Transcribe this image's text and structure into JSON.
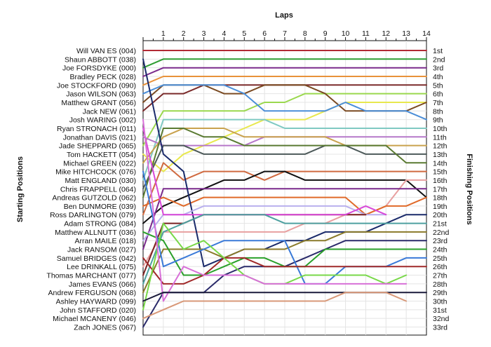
{
  "chart_data": {
    "type": "line",
    "title": "",
    "xlabel": "Laps",
    "ylabel_left": "Starting Positions",
    "ylabel_right": "Finishing Positions",
    "x_ticks": [
      "1",
      "2",
      "3",
      "4",
      "5",
      "6",
      "7",
      "8",
      "9",
      "10",
      "11",
      "12",
      "13",
      "14"
    ],
    "xlim": [
      0,
      14
    ],
    "y_positions": [
      1,
      33
    ],
    "grid": true,
    "legend": "none",
    "start_labels": [
      "Will VAN ES (004)",
      "Shaun ABBOTT (038)",
      "Joe FORSDYKE (000)",
      "Bradley PECK (028)",
      "Joe STOCKFORD (090)",
      "Jason WILSON (063)",
      "Matthew GRANT (056)",
      "Jack NEW (061)",
      "Josh WARING (002)",
      "Ryan STRONACH (011)",
      "Jonathan DAVIS (021)",
      "Jade SHEPPARD (065)",
      "Tom HACKETT (054)",
      "Michael GREEN (022)",
      "Mike HITCHCOCK (076)",
      "Matt ENGLAND (030)",
      "Chris FRAPPELL (064)",
      "Andreas GUTZOLD (062)",
      "Ben DUNMORE (039)",
      "Ross DARLINGTON (079)",
      "Adam STRONG (084)",
      "Matthew ALLNUTT (036)",
      "Arran MAILE (018)",
      "Jack RANSOM (027)",
      "Samuel BRIDGES (042)",
      "Lee DRINKALL (075)",
      "Thomas MARCHANT (077)",
      "James EVANS (066)",
      "Andrew FERGUSON (068)",
      "Ashley HAYWARD (099)",
      "John STAFFORD (020)",
      "Michael MCANENY (046)",
      "Zach JONES (067)"
    ],
    "finish_labels": [
      "1st",
      "2nd",
      "3rd",
      "4th",
      "5th",
      "6th",
      "7th",
      "8th",
      "9th",
      "10th",
      "11th",
      "12th",
      "13th",
      "14th",
      "15th",
      "16th",
      "17th",
      "18th",
      "19th",
      "20th",
      "21st",
      "22nd",
      "23rd",
      "24th",
      "25th",
      "26th",
      "27th",
      "28th",
      "29th",
      "30th",
      "31st",
      "32nd",
      "33rd"
    ],
    "series": [
      {
        "color": "#b22a34",
        "values": [
          1,
          1,
          1,
          1,
          1,
          1,
          1,
          1,
          1,
          1,
          1,
          1,
          1,
          1,
          1
        ]
      },
      {
        "color": "#2f9e33",
        "values": [
          3,
          2,
          2,
          2,
          2,
          2,
          2,
          2,
          2,
          2,
          2,
          2,
          2,
          2,
          2
        ]
      },
      {
        "color": "#7a2a8c",
        "values": [
          4,
          3,
          3,
          3,
          3,
          3,
          3,
          3,
          3,
          3,
          3,
          3,
          3,
          3,
          3
        ]
      },
      {
        "color": "#e8923a",
        "values": [
          5,
          4,
          4,
          4,
          4,
          4,
          4,
          4,
          4,
          4,
          4,
          4,
          4,
          4,
          4
        ]
      },
      {
        "color": "#7a2a2a",
        "values": [
          8,
          6,
          6,
          5,
          5,
          5,
          5,
          5,
          5,
          5,
          5,
          5,
          5,
          5,
          5
        ]
      },
      {
        "color": "#9ad84e",
        "values": [
          12,
          8,
          8,
          8,
          8,
          8,
          7,
          7,
          6,
          6,
          6,
          6,
          6,
          6,
          6
        ]
      },
      {
        "color": "#e8e84e",
        "values": [
          13,
          15,
          13,
          12,
          11,
          10,
          9,
          9,
          9,
          8,
          7,
          7,
          7,
          7,
          7
        ]
      },
      {
        "color": "#7a4a22",
        "values": [
          7,
          5,
          5,
          5,
          6,
          6,
          5,
          5,
          5,
          6,
          8,
          8,
          8,
          8,
          7
        ]
      },
      {
        "color": "#4b8ed8",
        "values": [
          6,
          5,
          5,
          5,
          5,
          6,
          8,
          8,
          8,
          8,
          7,
          8,
          8,
          8,
          9
        ]
      },
      {
        "color": "#7fc9c2",
        "values": [
          16,
          9,
          9,
          9,
          9,
          9,
          9,
          10,
          10,
          10,
          10,
          10,
          10,
          10,
          10
        ]
      },
      {
        "color": "#b678c9",
        "values": [
          11,
          12,
          12,
          12,
          12,
          12,
          11,
          11,
          11,
          11,
          11,
          11,
          11,
          11,
          11
        ]
      },
      {
        "color": "#c9a24e",
        "values": [
          14,
          11,
          10,
          10,
          10,
          11,
          11,
          11,
          11,
          11,
          12,
          12,
          12,
          12,
          12
        ]
      },
      {
        "color": "#4d5a5a",
        "values": [
          17,
          12,
          12,
          13,
          13,
          13,
          13,
          13,
          13,
          12,
          12,
          13,
          13,
          13,
          13
        ]
      },
      {
        "color": "#5a7a32",
        "values": [
          18,
          10,
          10,
          11,
          11,
          12,
          12,
          12,
          12,
          12,
          12,
          12,
          12,
          14,
          14
        ]
      },
      {
        "color": "#d06a40",
        "values": [
          20,
          14,
          16,
          15,
          15,
          15,
          16,
          15,
          15,
          15,
          15,
          15,
          15,
          15,
          15
        ]
      },
      {
        "color": "#101010",
        "values": [
          21,
          19,
          18,
          17,
          16,
          16,
          15,
          15,
          16,
          16,
          16,
          16,
          16,
          16,
          18
        ]
      },
      {
        "color": "#e8a0a0",
        "values": [
          26,
          22,
          22,
          22,
          22,
          22,
          22,
          22,
          21,
          21,
          20,
          20,
          19,
          16,
          16
        ]
      },
      {
        "color": "#7a2a8c",
        "values": [
          24,
          17,
          17,
          17,
          17,
          17,
          17,
          17,
          17,
          17,
          17,
          17,
          17,
          17,
          17
        ]
      },
      {
        "color": "#e06a2a",
        "values": [
          19,
          18,
          19,
          18,
          18,
          18,
          18,
          18,
          18,
          18,
          18,
          20,
          19,
          19,
          18
        ]
      },
      {
        "color": "#1a2a6a",
        "values": [
          2,
          13,
          15,
          26,
          25,
          24,
          24,
          23,
          23,
          22,
          22,
          22,
          21,
          20,
          20
        ]
      },
      {
        "color": "#b9b0ee",
        "values": [
          23,
          20,
          20,
          19,
          19,
          19,
          19,
          19,
          19,
          19,
          19,
          20,
          20
        ]
      },
      {
        "color": "#7a2222",
        "values": [
          27,
          21,
          21,
          20,
          20,
          20,
          20,
          20,
          20,
          20,
          20,
          20
        ]
      },
      {
        "color": "#d848d8",
        "values": [
          10,
          20,
          20,
          20,
          20,
          20,
          20,
          20,
          20,
          20,
          20,
          19,
          20
        ]
      },
      {
        "color": "#4ea0a0",
        "values": [
          28,
          22,
          21,
          20,
          20,
          20,
          20,
          21,
          21,
          21,
          21,
          21,
          21,
          21,
          21
        ]
      },
      {
        "color": "#8a7a2a",
        "values": [
          29,
          24,
          24,
          24,
          25,
          24,
          24,
          24,
          23,
          23,
          22,
          22,
          22,
          22,
          22
        ]
      },
      {
        "color": "#2a2a6a",
        "values": [
          33,
          29,
          29,
          29,
          27,
          26,
          26,
          26,
          25,
          24,
          23,
          23,
          23,
          23,
          23
        ]
      },
      {
        "color": "#2aa02a",
        "values": [
          22,
          23,
          27,
          27,
          26,
          25,
          25,
          26,
          26,
          24,
          24,
          24,
          24,
          24,
          24
        ]
      },
      {
        "color": "#3a7ad8",
        "values": [
          15,
          26,
          25,
          24,
          23,
          23,
          23,
          23,
          28,
          28,
          26,
          26,
          26,
          25,
          25
        ]
      },
      {
        "color": "#a02a2a",
        "values": [
          25,
          28,
          28,
          27,
          25,
          25,
          26,
          26,
          26,
          26,
          26,
          26,
          26,
          26,
          26
        ]
      },
      {
        "color": "#78d848",
        "values": [
          31,
          21,
          24,
          23,
          25,
          27,
          28,
          28,
          27,
          27,
          27,
          27,
          28,
          27
        ]
      },
      {
        "color": "#d870d8",
        "values": [
          9,
          30,
          26,
          27,
          27,
          27,
          28,
          28,
          28,
          28,
          28,
          28,
          28,
          28
        ]
      },
      {
        "color": "#1a1a3a",
        "values": [
          30,
          29,
          29,
          29,
          29,
          29,
          29,
          29,
          29,
          29,
          29,
          29,
          29,
          29,
          29
        ]
      },
      {
        "color": "#d89878",
        "values": [
          32,
          31,
          30,
          30,
          30,
          30,
          30,
          30,
          30,
          30,
          29,
          29,
          29,
          30
        ]
      }
    ]
  }
}
